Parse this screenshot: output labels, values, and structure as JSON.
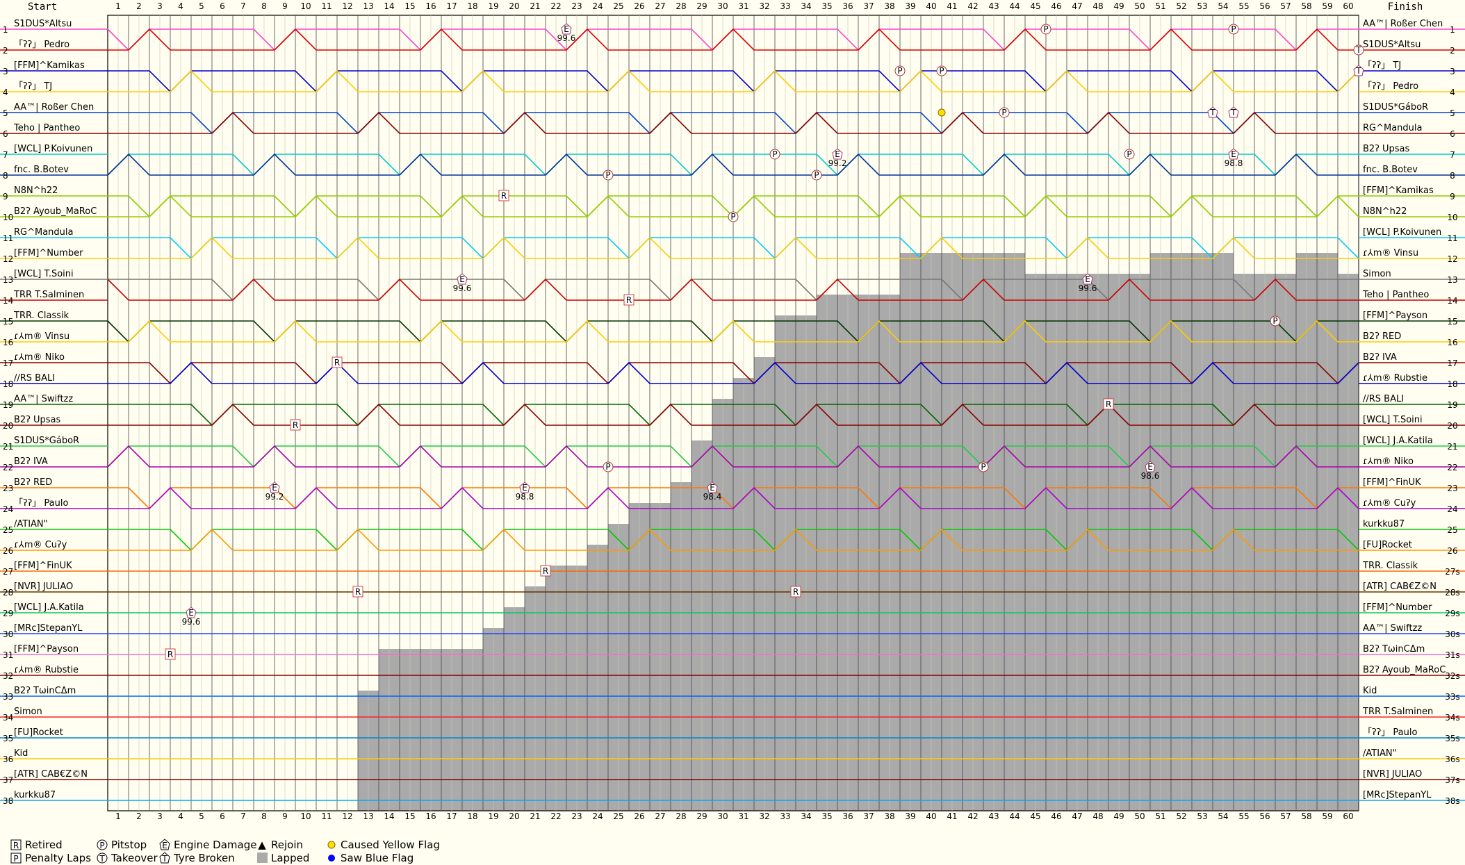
{
  "chart_data": {
    "type": "line",
    "title": "",
    "header": {
      "start": "Start",
      "finish": "Finish"
    },
    "laps": 60,
    "positions": 38,
    "x": [
      1,
      2,
      3,
      4,
      5,
      6,
      7,
      8,
      9,
      10,
      11,
      12,
      13,
      14,
      15,
      16,
      17,
      18,
      19,
      20,
      21,
      22,
      23,
      24,
      25,
      26,
      27,
      28,
      29,
      30,
      31,
      32,
      33,
      34,
      35,
      36,
      37,
      38,
      39,
      40,
      41,
      42,
      43,
      44,
      45,
      46,
      47,
      48,
      49,
      50,
      51,
      52,
      53,
      54,
      55,
      56,
      57,
      58,
      59,
      60
    ],
    "start_grid": [
      "S1DUS*Altsu",
      "「ʔʔ」 Pedro",
      "[FFM]^Kamikas",
      "「ʔʔ」 TJ",
      "AA™| Roßer Chen",
      "Teho | Pantheo",
      "[WCL] P.Koivunen",
      "fnc. B.Botev",
      "N8N^h22",
      "B2ʔ Ayoub_MaRoC",
      "RG^Mandula",
      "[FFM]^Number",
      "[WCL] T.Soini",
      "TRR T.Salminen",
      "TRR. Classik",
      "ɾ⅄m® Vinsu",
      "ɾ⅄m® Niko",
      "//RS BALI",
      "AA™| Swiftzz",
      "B2ʔ Upsas",
      "S1DUS*GáboR",
      "B2ʔ IVA",
      "B2ʔ RED",
      "「ʔʔ」 Paulo",
      "/ATIAN\"",
      "ɾ⅄m® Cuʔy",
      "[FFM]^FinUK",
      "[NVR] JULIAO",
      "[WCL] J.A.Katila",
      "[MRc]StepanYL",
      "[FFM]^Payson",
      "ɾ⅄m® Rubstie",
      "B2ʔ TωinCΔm",
      "Simon",
      "[FU]Rocket",
      "Kid",
      "[ATR] CAB€Z©N",
      "kurkku87"
    ],
    "finish_order": [
      "AA™| Roßer Chen",
      "S1DUS*Altsu",
      "「ʔʔ」 TJ",
      "「ʔʔ」 Pedro",
      "S1DUS*GáboR",
      "RG^Mandula",
      "B2ʔ Upsas",
      "fnc. B.Botev",
      "[FFM]^Kamikas",
      "N8N^h22",
      "[WCL] P.Koivunen",
      "ɾ⅄m® Vinsu",
      "Simon",
      "Teho | Pantheo",
      "[FFM]^Payson",
      "B2ʔ RED",
      "B2ʔ IVA",
      "ɾ⅄m® Rubstie",
      "//RS BALI",
      "[WCL] T.Soini",
      "[WCL] J.A.Katila",
      "ɾ⅄m® Niko",
      "[FFM]^FinUK",
      "ɾ⅄m® Cuʔy",
      "kurkku87",
      "[FU]Rocket",
      "TRR. Classik",
      "[ATR] CAB€Z©N",
      "[FFM]^Number",
      "AA™| Swiftzz",
      "B2ʔ TωinCΔm",
      "B2ʔ Ayoub_MaRoC",
      "Kid",
      "TRR T.Salminen",
      "「ʔʔ」 Paulo",
      "/ATIAN\"",
      "[NVR] JULIAO",
      "[MRc]StepanYL"
    ],
    "finish_markers": [
      "",
      "",
      "",
      "",
      "",
      "",
      "",
      "",
      "",
      "",
      "",
      "",
      "",
      "",
      "",
      "",
      "",
      "",
      "",
      "",
      "",
      "",
      "",
      "",
      "",
      "",
      "27s",
      "28s",
      "29s",
      "30s",
      "31s",
      "32s",
      "33s",
      "34s",
      "35s",
      "36s",
      "37s",
      "38s"
    ],
    "series_colors": [
      "#ff44cc",
      "#dd0000",
      "#0000cc",
      "#ffcc00",
      "#0044cc",
      "#8b0000",
      "#00cccc",
      "#003399",
      "#88cc00",
      "#99cc00",
      "#00ccff",
      "#ffcc00",
      "#777777",
      "#cc0000",
      "#003300",
      "#ffcc00",
      "#880000",
      "#0000cc",
      "#006600",
      "#8b0000",
      "#22cc44",
      "#aa00aa",
      "#ff7700",
      "#aa00cc",
      "#00cc00",
      "#ff9900",
      "#ff6600",
      "#663300",
      "#00cc66",
      "#2244ff",
      "#ff66cc",
      "#8b0000",
      "#0066ff",
      "#ff2222",
      "#0088cc",
      "#ffcc00",
      "#880000",
      "#00aaff"
    ],
    "lapped_depth": [
      0,
      0,
      0,
      0,
      0,
      0,
      0,
      0,
      0,
      0,
      0,
      0,
      33,
      31,
      31,
      31,
      31,
      31,
      30,
      29,
      28,
      27,
      27,
      26,
      25,
      24,
      24,
      23,
      21,
      19,
      18,
      17,
      15,
      15,
      14,
      14,
      14,
      14,
      12,
      12,
      12,
      12,
      12,
      12,
      13,
      13,
      13,
      13,
      13,
      13,
      12,
      12,
      12,
      12,
      13,
      13,
      13,
      12,
      12,
      13
    ],
    "events": [
      {
        "lap": 22,
        "pos": 1,
        "type": "engine_damage",
        "note": "99.6"
      },
      {
        "lap": 45,
        "pos": 1,
        "type": "pitstop"
      },
      {
        "lap": 54,
        "pos": 1,
        "type": "pitstop"
      },
      {
        "lap": 38,
        "pos": 3,
        "type": "pitstop"
      },
      {
        "lap": 40,
        "pos": 3,
        "type": "pitstop"
      },
      {
        "lap": 43,
        "pos": 5,
        "type": "pitstop"
      },
      {
        "lap": 40,
        "pos": 5,
        "type": "caused_yellow"
      },
      {
        "lap": 32,
        "pos": 7,
        "type": "pitstop"
      },
      {
        "lap": 35,
        "pos": 7,
        "type": "engine_damage",
        "note": "99.2"
      },
      {
        "lap": 49,
        "pos": 7,
        "type": "pitstop"
      },
      {
        "lap": 54,
        "pos": 7,
        "type": "engine_damage",
        "note": "98.8"
      },
      {
        "lap": 24,
        "pos": 8,
        "type": "pitstop"
      },
      {
        "lap": 34,
        "pos": 8,
        "type": "pitstop"
      },
      {
        "lap": 19,
        "pos": 9,
        "type": "retired"
      },
      {
        "lap": 30,
        "pos": 10,
        "type": "pitstop"
      },
      {
        "lap": 17,
        "pos": 13,
        "type": "engine_damage",
        "note": "99.6"
      },
      {
        "lap": 25,
        "pos": 14,
        "type": "retired"
      },
      {
        "lap": 11,
        "pos": 17,
        "type": "retired"
      },
      {
        "lap": 9,
        "pos": 20,
        "type": "retired"
      },
      {
        "lap": 24,
        "pos": 22,
        "type": "pitstop"
      },
      {
        "lap": 8,
        "pos": 23,
        "type": "engine_damage",
        "note": "99.2"
      },
      {
        "lap": 20,
        "pos": 23,
        "type": "engine_damage",
        "note": "98.8"
      },
      {
        "lap": 29,
        "pos": 23,
        "type": "engine_damage",
        "note": "98.4"
      },
      {
        "lap": 21,
        "pos": 27,
        "type": "retired"
      },
      {
        "lap": 12,
        "pos": 28,
        "type": "retired"
      },
      {
        "lap": 33,
        "pos": 28,
        "type": "retired"
      },
      {
        "lap": 4,
        "pos": 29,
        "type": "engine_damage",
        "note": "99.6"
      },
      {
        "lap": 3,
        "pos": 31,
        "type": "retired"
      },
      {
        "lap": 42,
        "pos": 22,
        "type": "pitstop"
      },
      {
        "lap": 48,
        "pos": 19,
        "type": "retired"
      },
      {
        "lap": 50,
        "pos": 22,
        "type": "engine_damage",
        "note": "98.6"
      },
      {
        "lap": 47,
        "pos": 13,
        "type": "engine_damage",
        "note": "99.6"
      },
      {
        "lap": 56,
        "pos": 15,
        "type": "pitstop"
      },
      {
        "lap": 60,
        "pos": 2,
        "type": "takeover"
      },
      {
        "lap": 60,
        "pos": 3,
        "type": "tyre_broken"
      },
      {
        "lap": 53,
        "pos": 5,
        "type": "tyre_broken"
      },
      {
        "lap": 54,
        "pos": 5,
        "type": "tyre_broken"
      }
    ],
    "legend": [
      {
        "icon": "R",
        "shape": "box",
        "text": "Retired"
      },
      {
        "icon": "P",
        "shape": "box",
        "text": "Penalty Laps"
      },
      {
        "icon": "P",
        "shape": "circle",
        "text": "Pitstop"
      },
      {
        "icon": "T",
        "shape": "circle",
        "text": "Takeover"
      },
      {
        "icon": "E",
        "shape": "pent",
        "text": "Engine Damage"
      },
      {
        "icon": "T",
        "shape": "pent",
        "text": "Tyre Broken"
      },
      {
        "icon": "▲",
        "shape": "tri",
        "text": "Rejoin"
      },
      {
        "icon": "",
        "shape": "grey",
        "text": "Lapped"
      },
      {
        "icon": "",
        "shape": "yellowdot",
        "text": "Caused Yellow Flag"
      },
      {
        "icon": "",
        "shape": "bluedot",
        "text": "Saw Blue Flag"
      }
    ]
  }
}
